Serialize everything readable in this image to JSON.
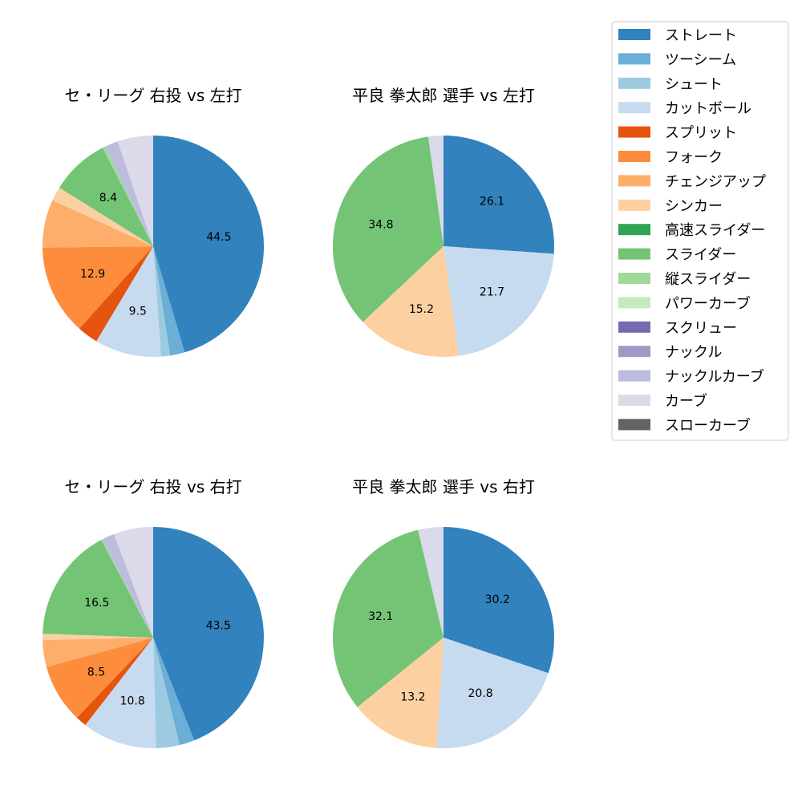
{
  "chart_data": {
    "type": "pie",
    "legend": {
      "placement": "top-right",
      "entries": [
        {
          "label": "ストレート",
          "color": "#3182bd"
        },
        {
          "label": "ツーシーム",
          "color": "#6baed6"
        },
        {
          "label": "シュート",
          "color": "#9ecae1"
        },
        {
          "label": "カットボール",
          "color": "#c6dbef"
        },
        {
          "label": "スプリット",
          "color": "#e6550d"
        },
        {
          "label": "フォーク",
          "color": "#fd8d3c"
        },
        {
          "label": "チェンジアップ",
          "color": "#fdae6b"
        },
        {
          "label": "シンカー",
          "color": "#fdd0a2"
        },
        {
          "label": "高速スライダー",
          "color": "#31a354"
        },
        {
          "label": "スライダー",
          "color": "#74c476"
        },
        {
          "label": "縦スライダー",
          "color": "#a1d99b"
        },
        {
          "label": "パワーカーブ",
          "color": "#c7e9c0"
        },
        {
          "label": "スクリュー",
          "color": "#756bb1"
        },
        {
          "label": "ナックル",
          "color": "#9e9ac8"
        },
        {
          "label": "ナックルカーブ",
          "color": "#bcbddc"
        },
        {
          "label": "カーブ",
          "color": "#dadaeb"
        },
        {
          "label": "スローカーブ",
          "color": "#636363"
        }
      ]
    },
    "charts": [
      {
        "title": "セ・リーグ 右投 vs 左打",
        "slices": [
          {
            "label": "ストレート",
            "value": 44.5,
            "shown": "44.5"
          },
          {
            "label": "ツーシーム",
            "value": 2.1
          },
          {
            "label": "シュート",
            "value": 1.3
          },
          {
            "label": "カットボール",
            "value": 9.5,
            "shown": "9.5"
          },
          {
            "label": "スプリット",
            "value": 3.0
          },
          {
            "label": "フォーク",
            "value": 12.9,
            "shown": "12.9"
          },
          {
            "label": "チェンジアップ",
            "value": 6.9
          },
          {
            "label": "シンカー",
            "value": 2.0
          },
          {
            "label": "スライダー",
            "value": 8.4,
            "shown": "8.4"
          },
          {
            "label": "縦スライダー",
            "value": 0.4
          },
          {
            "label": "ナックルカーブ",
            "value": 1.9
          },
          {
            "label": "カーブ",
            "value": 5.1
          }
        ]
      },
      {
        "title": "平良 拳太郎 選手 vs 左打",
        "slices": [
          {
            "label": "ストレート",
            "value": 26.1,
            "shown": "26.1"
          },
          {
            "label": "カットボール",
            "value": 21.7,
            "shown": "21.7"
          },
          {
            "label": "シンカー",
            "value": 15.2,
            "shown": "15.2"
          },
          {
            "label": "スライダー",
            "value": 34.8,
            "shown": "34.8"
          },
          {
            "label": "カーブ",
            "value": 2.2
          }
        ]
      },
      {
        "title": "セ・リーグ 右投 vs 右打",
        "slices": [
          {
            "label": "ストレート",
            "value": 43.5,
            "shown": "43.5"
          },
          {
            "label": "ツーシーム",
            "value": 2.2
          },
          {
            "label": "シュート",
            "value": 3.4
          },
          {
            "label": "カットボール",
            "value": 10.8,
            "shown": "10.8"
          },
          {
            "label": "スプリット",
            "value": 1.6
          },
          {
            "label": "フォーク",
            "value": 8.5,
            "shown": "8.5"
          },
          {
            "label": "チェンジアップ",
            "value": 3.9
          },
          {
            "label": "シンカー",
            "value": 0.9
          },
          {
            "label": "スライダー",
            "value": 16.5,
            "shown": "16.5"
          },
          {
            "label": "縦スライダー",
            "value": 0.2
          },
          {
            "label": "ナックルカーブ",
            "value": 1.8
          },
          {
            "label": "カーブ",
            "value": 5.7
          }
        ]
      },
      {
        "title": "平良 拳太郎 選手 vs 右打",
        "slices": [
          {
            "label": "ストレート",
            "value": 30.2,
            "shown": "30.2"
          },
          {
            "label": "カットボール",
            "value": 20.8,
            "shown": "20.8"
          },
          {
            "label": "シンカー",
            "value": 13.2,
            "shown": "13.2"
          },
          {
            "label": "スライダー",
            "value": 32.1,
            "shown": "32.1"
          },
          {
            "label": "カーブ",
            "value": 3.7
          }
        ]
      }
    ]
  }
}
